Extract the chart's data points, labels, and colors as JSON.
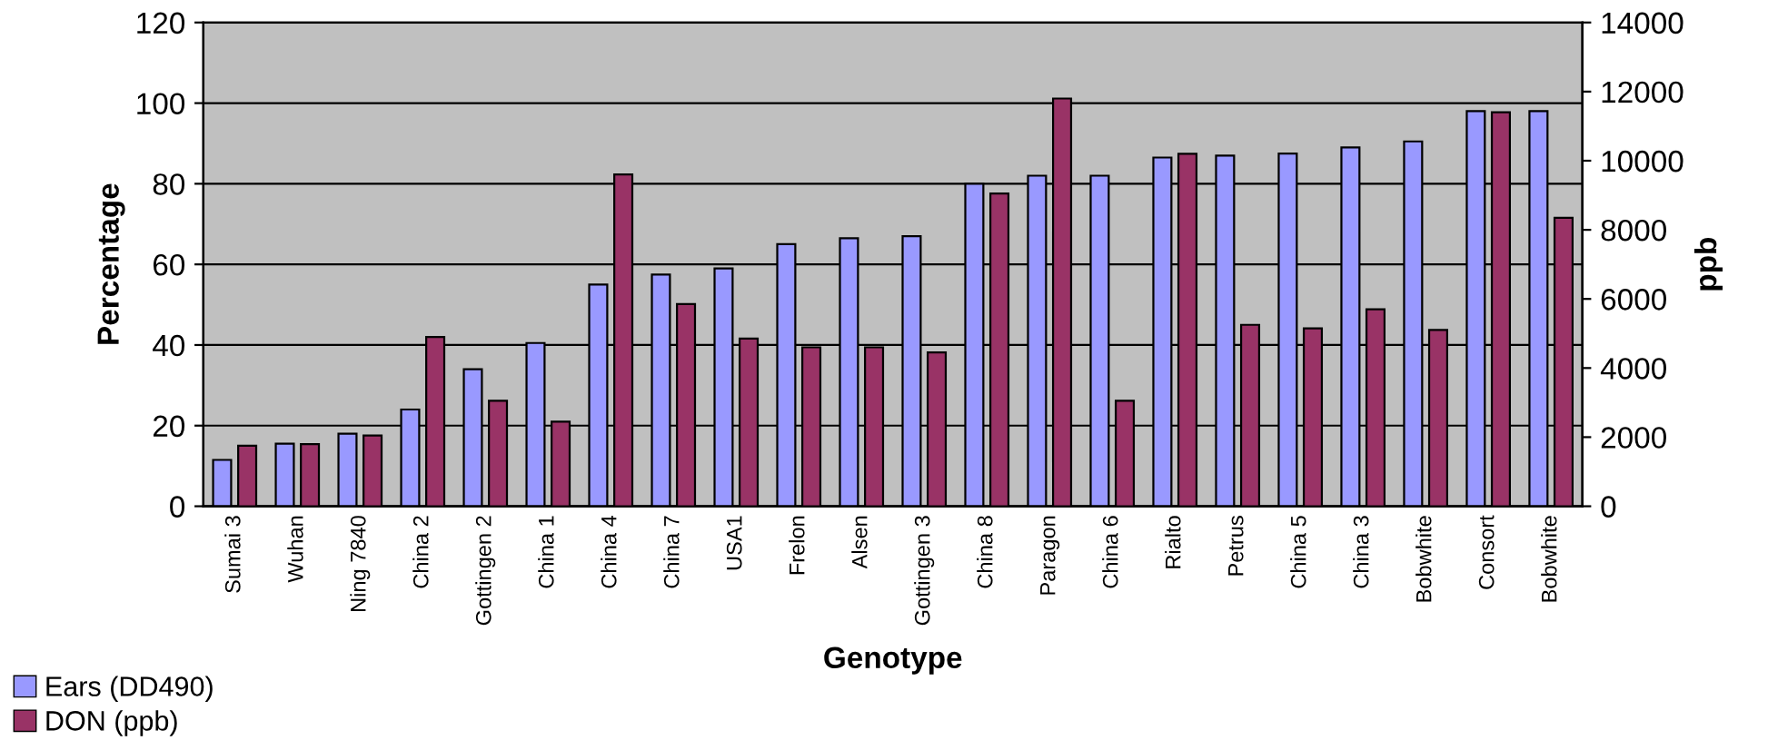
{
  "chart_data": {
    "type": "bar",
    "xlabel": "Genotype",
    "ylabel": "Percentage",
    "y2label": "ppb",
    "categories": [
      "Sumai 3",
      "Wuhan",
      "Ning 7840",
      "China 2",
      "Gottingen 2",
      "China 1",
      "China 4",
      "China 7",
      "USA1",
      "Frelon",
      "Alsen",
      "Gottingen 3",
      "China 8",
      "Paragon",
      "China 6",
      "Rialto",
      "Petrus",
      "China 5",
      "China 3",
      "Bobwhite",
      "Consort",
      "Bobwhite"
    ],
    "series": [
      {
        "name": "Ears (DD490)",
        "color": "#9999ff",
        "values": [
          11.5,
          15.5,
          18,
          24,
          34,
          40.5,
          55,
          57.5,
          59,
          65,
          66.5,
          67,
          80,
          82,
          82,
          86.5,
          87,
          87.5,
          89,
          90.5,
          98,
          98
        ]
      },
      {
        "name": "DON (ppb)",
        "color": "#993366",
        "axis": "y2",
        "values": [
          1750,
          1800,
          2050,
          4900,
          3050,
          2450,
          9600,
          5850,
          4850,
          4600,
          4600,
          4450,
          9050,
          11800,
          3050,
          10200,
          5250,
          5150,
          5700,
          5100,
          11400,
          8350
        ]
      }
    ],
    "ylim": [
      0,
      120
    ],
    "yticks": [
      0,
      20,
      40,
      60,
      80,
      100,
      120
    ],
    "y2lim": [
      0,
      14000
    ],
    "y2ticks": [
      0,
      2000,
      4000,
      6000,
      8000,
      10000,
      12000,
      14000
    ],
    "grid": "y",
    "legend": "bottom left"
  }
}
